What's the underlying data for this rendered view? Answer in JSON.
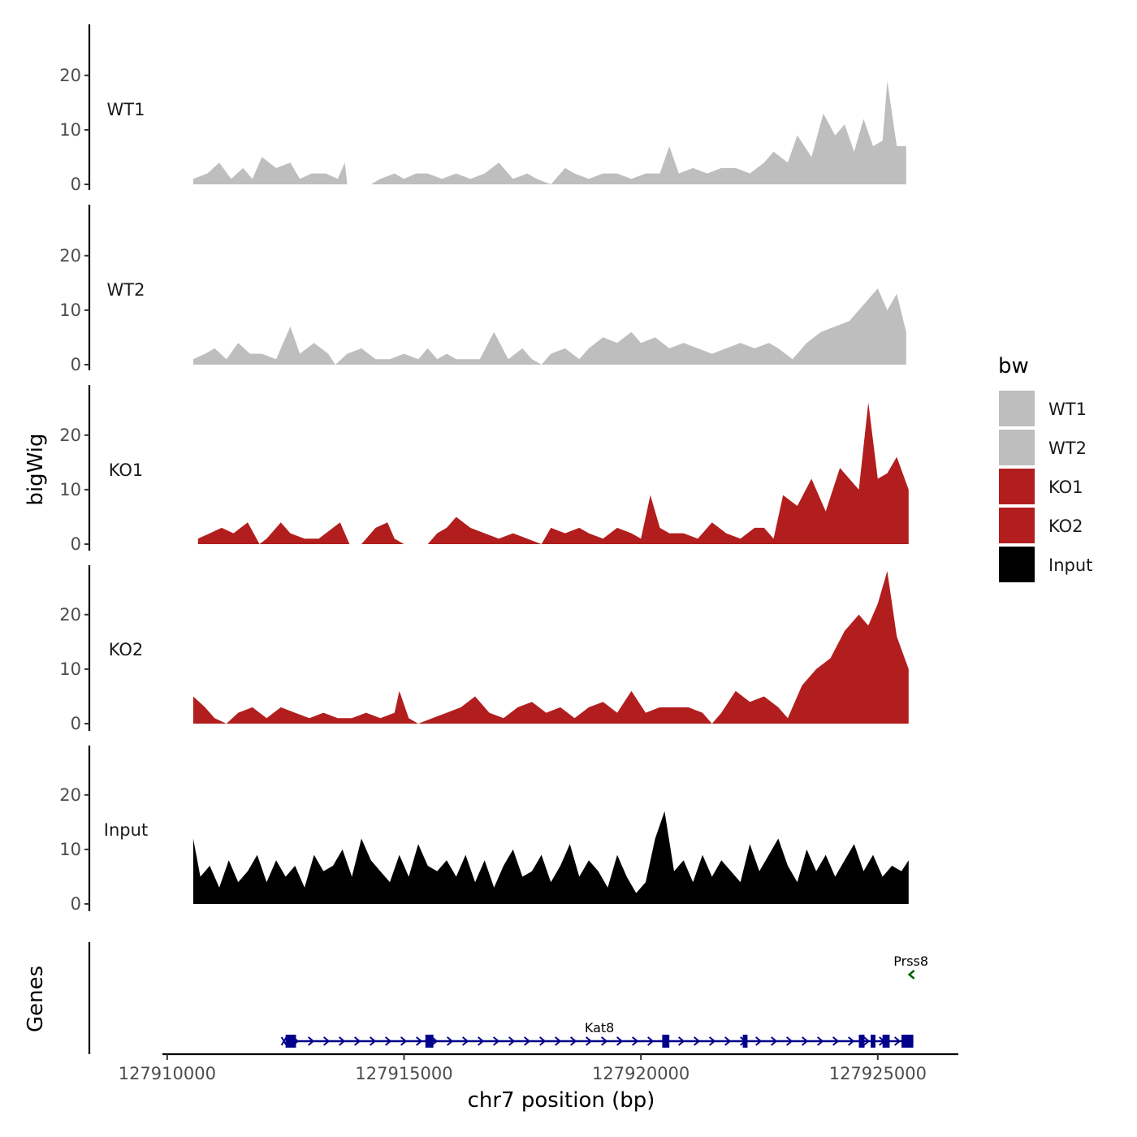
{
  "chart_data": {
    "type": "area",
    "title": "",
    "xlabel": "chr7 position (bp)",
    "ylabel": "bigWig",
    "xlim": [
      127909900,
      127926700
    ],
    "ylim": [
      0,
      29
    ],
    "x_ticks": [
      127910000,
      127915000,
      127920000,
      127925000
    ],
    "x_tick_labels": [
      "127910000",
      "127915000",
      "127920000",
      "127925000"
    ],
    "y_ticks": [
      0,
      10,
      20
    ],
    "y_tick_labels": [
      "0",
      "10",
      "20"
    ],
    "legend": {
      "title": "bw",
      "position": "right",
      "entries": [
        {
          "label": "WT1",
          "color": "#bebebe"
        },
        {
          "label": "WT2",
          "color": "#bebebe"
        },
        {
          "label": "KO1",
          "color": "#b21e1e"
        },
        {
          "label": "KO2",
          "color": "#b21e1e"
        },
        {
          "label": "Input",
          "color": "#000000"
        }
      ]
    },
    "series": [
      {
        "name": "WT1",
        "color": "#bebebe",
        "x": [
          127910550,
          127910850,
          127911100,
          127911350,
          127911600,
          127911800,
          127912000,
          127912300,
          127912600,
          127912800,
          127913050,
          127913350,
          127913600,
          127913750,
          127913800,
          127914000,
          127914300,
          127914500,
          127914800,
          127915000,
          127915250,
          127915500,
          127915800,
          127916100,
          127916400,
          127916700,
          127917000,
          127917300,
          127917600,
          127917800,
          127918100,
          127918200,
          127918400,
          127918600,
          127918900,
          127919200,
          127919500,
          127919800,
          127920100,
          127920400,
          127920600,
          127920800,
          127921100,
          127921400,
          127921700,
          127922000,
          127922300,
          127922600,
          127922800,
          127923100,
          127923300,
          127923600,
          127923850,
          127924100,
          127924300,
          127924500,
          127924700,
          127924900,
          127925100,
          127925200,
          127925400,
          127925600
        ],
        "values": [
          1,
          2,
          4,
          1,
          3,
          1,
          5,
          3,
          4,
          1,
          2,
          2,
          1,
          4,
          0,
          0,
          0,
          1,
          2,
          1,
          2,
          2,
          1,
          2,
          1,
          2,
          4,
          1,
          2,
          1,
          0,
          1,
          3,
          2,
          1,
          2,
          2,
          1,
          2,
          2,
          7,
          2,
          3,
          2,
          3,
          3,
          2,
          4,
          6,
          4,
          9,
          5,
          13,
          9,
          11,
          6,
          12,
          7,
          8,
          19,
          7,
          7
        ]
      },
      {
        "name": "WT2",
        "color": "#bebebe",
        "x": [
          127910550,
          127910800,
          127911000,
          127911250,
          127911500,
          127911750,
          127912000,
          127912300,
          127912600,
          127912800,
          127913100,
          127913400,
          127913550,
          127913800,
          127914100,
          127914400,
          127914700,
          127915000,
          127915300,
          127915500,
          127915700,
          127915900,
          127916100,
          127916300,
          127916600,
          127916900,
          127917200,
          127917500,
          127917700,
          127917900,
          127918100,
          127918400,
          127918700,
          127918900,
          127919200,
          127919500,
          127919800,
          127920000,
          127920300,
          127920600,
          127920900,
          127921200,
          127921500,
          127921800,
          127922100,
          127922400,
          127922700,
          127922900,
          127923200,
          127923500,
          127923800,
          127924100,
          127924400,
          127924600,
          127924800,
          127925000,
          127925200,
          127925400,
          127925600
        ],
        "values": [
          1,
          2,
          3,
          1,
          4,
          2,
          2,
          1,
          7,
          2,
          4,
          2,
          0,
          2,
          3,
          1,
          1,
          2,
          1,
          3,
          1,
          2,
          1,
          1,
          1,
          6,
          1,
          3,
          1,
          0,
          2,
          3,
          1,
          3,
          5,
          4,
          6,
          4,
          5,
          3,
          4,
          3,
          2,
          3,
          4,
          3,
          4,
          3,
          1,
          4,
          6,
          7,
          8,
          10,
          12,
          14,
          10,
          13,
          6
        ]
      },
      {
        "name": "KO1",
        "color": "#b21e1e",
        "x": [
          127910650,
          127910900,
          127911150,
          127911400,
          127911700,
          127911950,
          127912100,
          127912400,
          127912600,
          127912900,
          127913200,
          127913500,
          127913650,
          127913750,
          127913850,
          127914100,
          127914400,
          127914650,
          127914800,
          127915000,
          127915300,
          127915500,
          127915700,
          127915900,
          127916100,
          127916400,
          127916700,
          127917000,
          127917300,
          127917600,
          127917900,
          127918100,
          127918400,
          127918700,
          127918900,
          127919200,
          127919500,
          127919800,
          127920000,
          127920200,
          127920400,
          127920600,
          127920900,
          127921200,
          127921500,
          127921800,
          127922100,
          127922400,
          127922600,
          127922800,
          127923000,
          127923300,
          127923600,
          127923900,
          127924200,
          127924400,
          127924600,
          127924800,
          127925000,
          127925200,
          127925400,
          127925650
        ],
        "values": [
          1,
          2,
          3,
          2,
          4,
          0,
          1,
          4,
          2,
          1,
          1,
          3,
          4,
          2,
          0,
          0,
          3,
          4,
          1,
          0,
          0,
          0,
          2,
          3,
          5,
          3,
          2,
          1,
          2,
          1,
          0,
          3,
          2,
          3,
          2,
          1,
          3,
          2,
          1,
          9,
          3,
          2,
          2,
          1,
          4,
          2,
          1,
          3,
          3,
          1,
          9,
          7,
          12,
          6,
          14,
          12,
          10,
          26,
          12,
          13,
          16,
          10
        ]
      },
      {
        "name": "KO2",
        "color": "#b21e1e",
        "x": [
          127910550,
          127910800,
          127911000,
          127911250,
          127911500,
          127911800,
          127912100,
          127912400,
          127912700,
          127913000,
          127913300,
          127913600,
          127913900,
          127914200,
          127914500,
          127914800,
          127914900,
          127915100,
          127915300,
          127915600,
          127915900,
          127916200,
          127916500,
          127916800,
          127917100,
          127917400,
          127917700,
          127918000,
          127918300,
          127918600,
          127918900,
          127919200,
          127919500,
          127919800,
          127920100,
          127920400,
          127920700,
          127921000,
          127921300,
          127921500,
          127921700,
          127922000,
          127922300,
          127922600,
          127922900,
          127923100,
          127923400,
          127923700,
          127924000,
          127924300,
          127924600,
          127924800,
          127925000,
          127925200,
          127925400,
          127925650
        ],
        "values": [
          5,
          3,
          1,
          0,
          2,
          3,
          1,
          3,
          2,
          1,
          2,
          1,
          1,
          2,
          1,
          2,
          6,
          1,
          0,
          1,
          2,
          3,
          5,
          2,
          1,
          3,
          4,
          2,
          3,
          1,
          3,
          4,
          2,
          6,
          2,
          3,
          3,
          3,
          2,
          0,
          2,
          6,
          4,
          5,
          3,
          1,
          7,
          10,
          12,
          17,
          20,
          18,
          22,
          28,
          16,
          10
        ]
      },
      {
        "name": "Input",
        "color": "#000000",
        "x": [
          127910550,
          127910700,
          127910900,
          127911100,
          127911300,
          127911500,
          127911700,
          127911900,
          127912100,
          127912300,
          127912500,
          127912700,
          127912900,
          127913100,
          127913300,
          127913500,
          127913700,
          127913900,
          127914100,
          127914300,
          127914500,
          127914700,
          127914900,
          127915100,
          127915300,
          127915500,
          127915700,
          127915900,
          127916100,
          127916300,
          127916500,
          127916700,
          127916900,
          127917100,
          127917300,
          127917500,
          127917700,
          127917900,
          127918100,
          127918300,
          127918500,
          127918700,
          127918900,
          127919100,
          127919300,
          127919500,
          127919700,
          127919900,
          127920100,
          127920300,
          127920500,
          127920700,
          127920900,
          127921100,
          127921300,
          127921500,
          127921700,
          127921900,
          127922100,
          127922300,
          127922500,
          127922700,
          127922900,
          127923100,
          127923300,
          127923500,
          127923700,
          127923900,
          127924100,
          127924300,
          127924500,
          127924700,
          127924900,
          127925100,
          127925300,
          127925500,
          127925650
        ],
        "values": [
          12,
          5,
          7,
          3,
          8,
          4,
          6,
          9,
          4,
          8,
          5,
          7,
          3,
          9,
          6,
          7,
          10,
          5,
          12,
          8,
          6,
          4,
          9,
          5,
          11,
          7,
          6,
          8,
          5,
          9,
          4,
          8,
          3,
          7,
          10,
          5,
          6,
          9,
          4,
          7,
          11,
          5,
          8,
          6,
          3,
          9,
          5,
          2,
          4,
          12,
          17,
          6,
          8,
          4,
          9,
          5,
          8,
          6,
          4,
          11,
          6,
          9,
          12,
          7,
          4,
          10,
          6,
          9,
          5,
          8,
          11,
          6,
          9,
          5,
          7,
          6,
          8
        ]
      }
    ],
    "gene_track": {
      "ylabel": "Genes",
      "genes": [
        {
          "name": "Kat8",
          "strand": "+",
          "start": 127912500,
          "end": 127925750,
          "color": "#00008b",
          "exons": [
            [
              127912500,
              127912720
            ],
            [
              127915450,
              127915620
            ],
            [
              127920450,
              127920600
            ],
            [
              127922150,
              127922250
            ],
            [
              127924600,
              127924720
            ],
            [
              127924850,
              127924950
            ],
            [
              127925100,
              127925250
            ],
            [
              127925500,
              127925750
            ]
          ]
        },
        {
          "name": "Prss8",
          "strand": "-",
          "start": 127925700,
          "end": 127925800,
          "color": "#006400",
          "exons": []
        }
      ]
    }
  }
}
